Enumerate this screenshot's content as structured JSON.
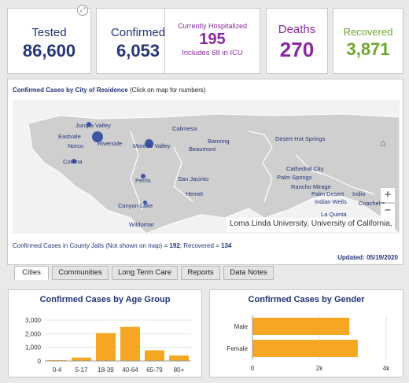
{
  "stats": {
    "tested": {
      "label": "Tested",
      "value": "86,600",
      "color": "#23347a"
    },
    "confirmed": {
      "label": "Confirmed",
      "value": "6,053",
      "color": "#23347a"
    },
    "hospitalized": {
      "label": "Currently Hospitalized",
      "value": "195",
      "sub": "Includes 68 in ICU",
      "color": "#8a2aa0"
    },
    "deaths": {
      "label": "Deaths",
      "value": "270",
      "color": "#8a2aa0"
    },
    "recovered": {
      "label": "Recovered",
      "value": "3,871",
      "color": "#6ca62e"
    }
  },
  "map": {
    "title_bold": "Confirmed Cases by City of Residence",
    "title_rest": " (Click on map for numbers)",
    "places": [
      "Jurupa Valley",
      "Eastvale",
      "Norco",
      "Corona",
      "Riverside",
      "Moreno Valley",
      "Calimesa",
      "Banning",
      "Beaumont",
      "Desert Hot Springs",
      "Cathedral City",
      "Palm Springs",
      "Rancho Mirage",
      "Palm Desert",
      "Indio",
      "Indian Wells",
      "Coachella",
      "La Quinta",
      "Perris",
      "San Jacinto",
      "Hemet",
      "Canyon Lake",
      "Wildomar"
    ],
    "attribution": "Loma Linda University, University of California, ...",
    "zoom_in": "+",
    "zoom_out": "−",
    "home_icon": "⌂"
  },
  "jail": {
    "text_prefix": "Confirmed Cases in County Jails (Not shown on map) = ",
    "confirmed": "192",
    "text_mid": "; Recovered = ",
    "recovered": "134"
  },
  "updated": "Updated: 05/19/2020",
  "tabs": [
    "Cities",
    "Communities",
    "Long Term Care",
    "Reports",
    "Data Notes"
  ],
  "accent_color": "#f5a623",
  "chart_data": [
    {
      "type": "bar",
      "title": "Confirmed Cases by Age Group",
      "categories": [
        "0-4",
        "5-17",
        "18-39",
        "40-64",
        "65-79",
        "80+"
      ],
      "values": [
        60,
        250,
        2050,
        2500,
        780,
        400
      ],
      "ylim": [
        0,
        3000
      ],
      "yticks": [
        "0",
        "1,000",
        "2,000",
        "3,000"
      ]
    },
    {
      "type": "bar",
      "orientation": "horizontal",
      "title": "Confirmed Cases by Gender",
      "categories": [
        "Male",
        "Female"
      ],
      "values": [
        2900,
        3150
      ],
      "xlim": [
        0,
        4000
      ],
      "xticks": [
        "0",
        "2k",
        "4k"
      ]
    }
  ]
}
